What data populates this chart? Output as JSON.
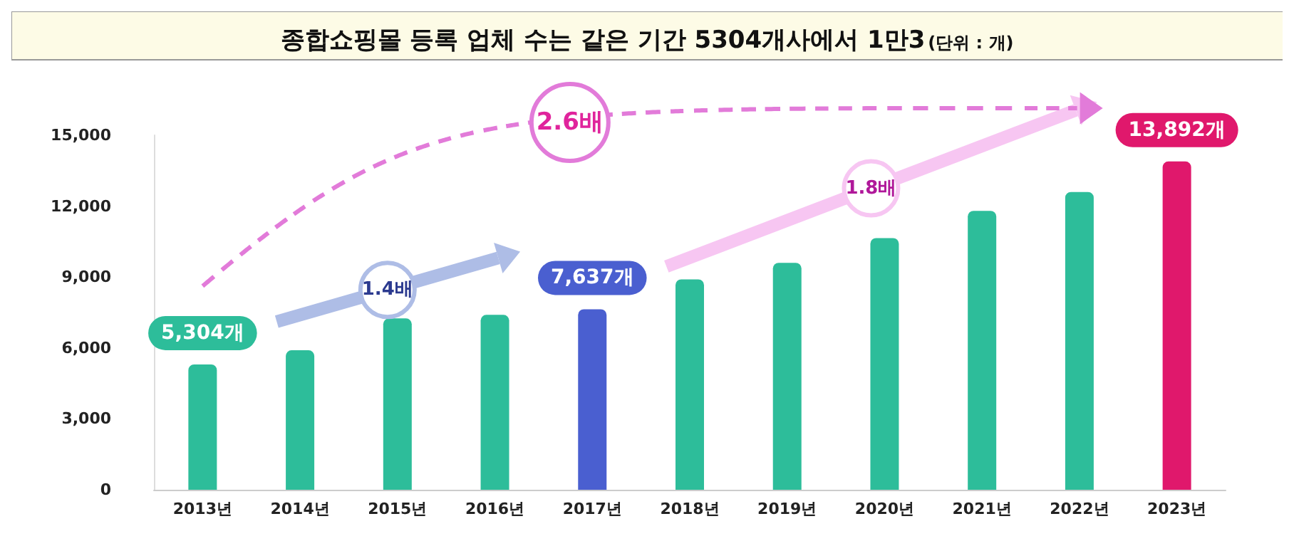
{
  "chart_data": {
    "type": "bar",
    "title": "종합쇼핑몰 등록 업체 수는 같은 기간 5304개사에서 1만3",
    "subtitle": "(단위 : 개)",
    "categories": [
      "2013년",
      "2014년",
      "2015년",
      "2016년",
      "2017년",
      "2018년",
      "2019년",
      "2020년",
      "2021년",
      "2022년",
      "2023년"
    ],
    "values": [
      5304,
      5900,
      7250,
      7400,
      7637,
      8900,
      9600,
      10650,
      11800,
      12600,
      13892
    ],
    "colors": [
      "#2dbd9a",
      "#2dbd9a",
      "#2dbd9a",
      "#2dbd9a",
      "#4a5fd0",
      "#2dbd9a",
      "#2dbd9a",
      "#2dbd9a",
      "#2dbd9a",
      "#2dbd9a",
      "#e0186c"
    ],
    "value_labels": [
      "5,304개",
      null,
      null,
      null,
      "7,637개",
      null,
      null,
      null,
      null,
      null,
      "13,892개"
    ],
    "annotations": [
      "1.4배",
      "1.8배",
      "2.6배"
    ],
    "ylim": [
      0,
      15000
    ],
    "yticks": [
      {
        "value": 0,
        "label": "0"
      },
      {
        "value": 3000,
        "label": "3,000"
      },
      {
        "value": 6000,
        "label": "6,000"
      },
      {
        "value": 9000,
        "label": "9,000"
      },
      {
        "value": 12000,
        "label": "12,000"
      },
      {
        "value": 15000,
        "label": "15,000"
      }
    ],
    "grid": false
  }
}
